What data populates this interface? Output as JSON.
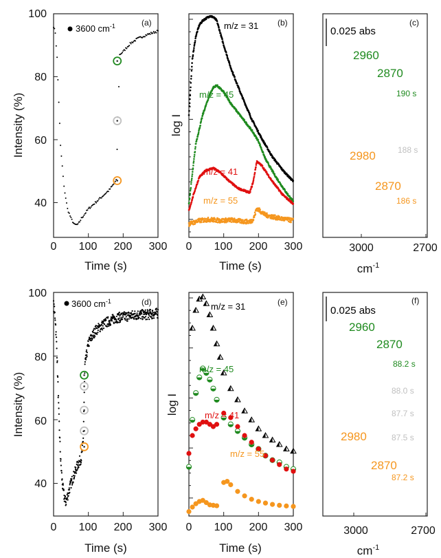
{
  "colors": {
    "black": "#000000",
    "green": "#1f8a1f",
    "red": "#e01010",
    "orange": "#f5961e",
    "grey": "#c0c0c0"
  },
  "figure": {
    "a": {
      "panel_label": "(a)",
      "legend": "3600 cm",
      "legend_sup": "-1",
      "ylabel": "Intensity (%)",
      "xlabel": "Time (s)",
      "xticks": [
        "0",
        "100",
        "200",
        "300"
      ],
      "yticks": [
        "40",
        "60",
        "80",
        "100"
      ]
    },
    "b": {
      "panel_label": "(b)",
      "ylabel": "log I",
      "xlabel": "Time (s)",
      "xticks": [
        "0",
        "100",
        "200",
        "300"
      ],
      "series_labels": [
        "m/z = 31",
        "m/z = 45",
        "m/z = 41",
        "m/z = 55"
      ]
    },
    "c": {
      "panel_label": "(c)",
      "scale": "0.025 abs",
      "xticks": [
        "3000",
        "2700"
      ],
      "xlabel": "cm",
      "xlabel_sup": "-1",
      "peaks_top": [
        "2960",
        "2870"
      ],
      "time_labels": [
        "190 s",
        "188 s",
        "186 s"
      ],
      "peaks_bottom": [
        "2980",
        "2870"
      ]
    },
    "d": {
      "panel_label": "(d)",
      "legend": "3600 cm",
      "legend_sup": "-1",
      "ylabel": "Intensity (%)",
      "xlabel": "Time (s)",
      "xticks": [
        "0",
        "100",
        "200",
        "300"
      ],
      "yticks": [
        "40",
        "60",
        "80",
        "100"
      ]
    },
    "e": {
      "panel_label": "(e)",
      "ylabel": "log I",
      "xlabel": "Time (s)",
      "xticks": [
        "0",
        "100",
        "200",
        "300"
      ],
      "series_labels": [
        "m/z = 31",
        "m/z = 45",
        "m/z = 41",
        "m/z = 55"
      ]
    },
    "f": {
      "panel_label": "(f)",
      "scale": "0.025 abs",
      "xticks": [
        "3000",
        "2700"
      ],
      "xlabel": "cm",
      "xlabel_sup": "-1",
      "peaks_top": [
        "2960",
        "2870"
      ],
      "time_labels": [
        "88.2 s",
        "88.0 s",
        "87.7 s",
        "87.5 s",
        "87.2 s"
      ],
      "peaks_bottom": [
        "2980",
        "2870"
      ]
    }
  },
  "chart_data": [
    {
      "panel": "a",
      "type": "scatter",
      "xlim": [
        0,
        300
      ],
      "ylim": [
        30,
        100
      ],
      "series": [
        {
          "name": "3600 cm-1",
          "x": [
            0,
            5,
            10,
            15,
            20,
            30,
            40,
            50,
            60,
            70,
            80,
            100,
            120,
            140,
            160,
            180,
            190,
            200,
            220,
            240,
            260,
            280,
            300
          ],
          "y": [
            96,
            94,
            86,
            72,
            58,
            45,
            38,
            35,
            33,
            33,
            35,
            38,
            40,
            42,
            44,
            47,
            87,
            88,
            90.5,
            92,
            93,
            93.8,
            94.5
          ]
        }
      ],
      "markers": [
        {
          "x": 183,
          "y": 85,
          "color": "green"
        },
        {
          "x": 183,
          "y": 66,
          "color": "grey"
        },
        {
          "x": 183,
          "y": 47,
          "color": "orange"
        }
      ]
    },
    {
      "panel": "b",
      "type": "line",
      "xlim": [
        0,
        300
      ],
      "yscale": "log",
      "series": [
        {
          "name": "m/z = 31",
          "x": [
            0,
            10,
            20,
            30,
            40,
            50,
            60,
            70,
            80,
            100,
            120,
            150,
            180,
            210,
            240,
            270,
            300
          ],
          "y": [
            0.55,
            0.8,
            0.9,
            0.95,
            0.97,
            0.98,
            0.99,
            0.985,
            0.97,
            0.86,
            0.76,
            0.64,
            0.53,
            0.44,
            0.36,
            0.3,
            0.25
          ]
        },
        {
          "name": "m/z = 45",
          "x": [
            0,
            20,
            40,
            60,
            70,
            80,
            100,
            120,
            150,
            180,
            200,
            220,
            250,
            280,
            300
          ],
          "y": [
            0.15,
            0.42,
            0.55,
            0.64,
            0.67,
            0.68,
            0.65,
            0.6,
            0.54,
            0.48,
            0.43,
            0.35,
            0.27,
            0.2,
            0.16
          ]
        },
        {
          "name": "m/z = 41",
          "x": [
            0,
            15,
            30,
            50,
            70,
            90,
            110,
            140,
            175,
            185,
            195,
            210,
            240,
            270,
            300
          ],
          "y": [
            0.12,
            0.2,
            0.27,
            0.3,
            0.31,
            0.29,
            0.26,
            0.22,
            0.2,
            0.25,
            0.34,
            0.32,
            0.25,
            0.19,
            0.15
          ]
        },
        {
          "name": "m/z = 55",
          "x": [
            0,
            30,
            60,
            90,
            120,
            150,
            175,
            185,
            195,
            220,
            260,
            300
          ],
          "y": [
            0.06,
            0.075,
            0.08,
            0.075,
            0.078,
            0.072,
            0.07,
            0.08,
            0.13,
            0.1,
            0.085,
            0.075
          ]
        }
      ]
    },
    {
      "panel": "c",
      "type": "line",
      "xlim": [
        3200,
        2700
      ],
      "series": [
        {
          "name": "190 s"
        },
        {
          "name": "188 s"
        },
        {
          "name": "186 s"
        }
      ]
    },
    {
      "panel": "d",
      "type": "scatter",
      "xlim": [
        0,
        300
      ],
      "ylim": [
        30,
        100
      ],
      "series": [
        {
          "name": "3600 cm-1",
          "x": [
            0,
            5,
            10,
            15,
            20,
            25,
            30,
            35,
            40,
            50,
            60,
            70,
            80,
            85,
            90,
            100,
            120,
            150,
            180,
            210,
            240,
            270,
            300
          ],
          "y": [
            96,
            92,
            80,
            62,
            48,
            40,
            36,
            34,
            36,
            40,
            43,
            46,
            48,
            53,
            77,
            84,
            88,
            90.5,
            92,
            92.5,
            93,
            93,
            93.5
          ]
        }
      ],
      "markers": [
        {
          "x": 88,
          "y": 74,
          "color": "green"
        },
        {
          "x": 88,
          "y": 70.5,
          "color": "grey"
        },
        {
          "x": 88,
          "y": 63,
          "color": "grey"
        },
        {
          "x": 88,
          "y": 56.5,
          "color": "grey"
        },
        {
          "x": 88,
          "y": 51.5,
          "color": "orange"
        }
      ]
    },
    {
      "panel": "e",
      "type": "scatter",
      "xlim": [
        0,
        300
      ],
      "yscale": "log",
      "series": [
        {
          "name": "m/z = 31",
          "x": [
            10,
            20,
            30,
            40,
            50,
            60,
            70,
            80,
            90,
            100,
            120,
            140,
            160,
            180,
            200,
            220,
            240,
            260,
            280,
            300
          ],
          "y": [
            0.84,
            0.92,
            0.97,
            0.98,
            0.95,
            0.9,
            0.84,
            0.77,
            0.71,
            0.64,
            0.57,
            0.52,
            0.47,
            0.43,
            0.39,
            0.36,
            0.34,
            0.32,
            0.3,
            0.29
          ]
        },
        {
          "name": "m/z = 45",
          "x": [
            0,
            10,
            20,
            30,
            40,
            50,
            60,
            70,
            80,
            100,
            120,
            140,
            160,
            180,
            200,
            220,
            240,
            260,
            280,
            300
          ],
          "y": [
            0.22,
            0.43,
            0.55,
            0.62,
            0.66,
            0.64,
            0.61,
            0.57,
            0.52,
            0.44,
            0.41,
            0.38,
            0.35,
            0.32,
            0.3,
            0.27,
            0.25,
            0.24,
            0.22,
            0.21
          ]
        },
        {
          "name": "m/z = 41",
          "x": [
            0,
            10,
            20,
            30,
            40,
            50,
            60,
            70,
            80,
            100,
            120,
            140,
            160,
            180,
            200,
            220,
            240,
            260,
            280,
            300
          ],
          "y": [
            0.28,
            0.36,
            0.39,
            0.41,
            0.42,
            0.42,
            0.41,
            0.4,
            0.41,
            0.46,
            0.44,
            0.4,
            0.36,
            0.33,
            0.3,
            0.27,
            0.25,
            0.23,
            0.21,
            0.2
          ]
        },
        {
          "name": "m/z = 55",
          "x": [
            0,
            10,
            20,
            30,
            40,
            50,
            60,
            70,
            80,
            100,
            110,
            120,
            140,
            160,
            180,
            200,
            220,
            240,
            260,
            280,
            300
          ],
          "y": [
            0.02,
            0.04,
            0.055,
            0.065,
            0.07,
            0.06,
            0.05,
            0.048,
            0.046,
            0.15,
            0.155,
            0.14,
            0.11,
            0.09,
            0.075,
            0.065,
            0.058,
            0.052,
            0.048,
            0.045,
            0.043
          ]
        }
      ]
    },
    {
      "panel": "f",
      "type": "line",
      "xlim": [
        3200,
        2700
      ],
      "series": [
        {
          "name": "88.2 s"
        },
        {
          "name": "88.0 s"
        },
        {
          "name": "87.7 s"
        },
        {
          "name": "87.5 s"
        },
        {
          "name": "87.2 s"
        }
      ]
    }
  ]
}
